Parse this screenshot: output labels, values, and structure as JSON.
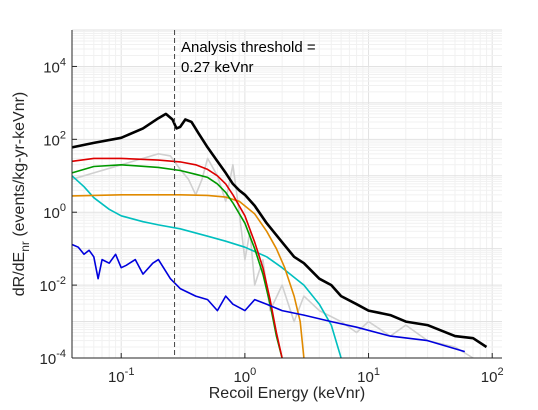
{
  "chart_data": {
    "type": "line",
    "xlabel": "Recoil Energy (keVnr)",
    "ylabel_prefix": "dR/dE",
    "ylabel_subscript": "nr",
    "ylabel_suffix": " (events/kg-yr-keVnr)",
    "x_scale": "log",
    "y_scale": "log",
    "xlim": [
      0.04,
      120
    ],
    "ylim": [
      0.0001,
      100000
    ],
    "x_ticks": [
      {
        "value": 0.1,
        "base": "10",
        "exp": "-1"
      },
      {
        "value": 1,
        "base": "10",
        "exp": "0"
      },
      {
        "value": 10,
        "base": "10",
        "exp": "1"
      },
      {
        "value": 100,
        "base": "10",
        "exp": "2"
      }
    ],
    "y_ticks": [
      {
        "value": 0.0001,
        "base": "10",
        "exp": "-4"
      },
      {
        "value": 0.01,
        "base": "10",
        "exp": "-2"
      },
      {
        "value": 1,
        "base": "10",
        "exp": "0"
      },
      {
        "value": 100,
        "base": "10",
        "exp": "2"
      },
      {
        "value": 10000,
        "base": "10",
        "exp": "4"
      }
    ],
    "grid": true,
    "threshold": {
      "x": 0.27,
      "label_line1": "Analysis threshold =",
      "label_line2": "0.27 keVnr"
    },
    "series": [
      {
        "color": "#d0d0d0",
        "points": [
          [
            0.04,
            8
          ],
          [
            0.06,
            12
          ],
          [
            0.1,
            20
          ],
          [
            0.15,
            30
          ],
          [
            0.2,
            40
          ],
          [
            0.25,
            35
          ],
          [
            0.3,
            15
          ],
          [
            0.35,
            8
          ],
          [
            0.4,
            3
          ],
          [
            0.45,
            8
          ],
          [
            0.5,
            30
          ],
          [
            0.6,
            10
          ],
          [
            0.7,
            2
          ],
          [
            0.8,
            20
          ],
          [
            0.9,
            1
          ],
          [
            1.0,
            0.05
          ],
          [
            1.1,
            0.3
          ],
          [
            1.2,
            0.01
          ],
          [
            1.4,
            0.05
          ],
          [
            1.6,
            0.002
          ],
          [
            2.0,
            0.01
          ],
          [
            2.5,
            0.001
          ],
          [
            3.0,
            0.005
          ],
          [
            4.0,
            0.002
          ],
          [
            6,
            0.001
          ],
          [
            8,
            0.0005
          ],
          [
            10,
            0.001
          ],
          [
            15,
            0.0004
          ],
          [
            20,
            0.0008
          ],
          [
            30,
            0.0003
          ],
          [
            50,
            0.0002
          ],
          [
            70,
            0.0001
          ]
        ]
      },
      {
        "color": "#00bfbf",
        "points": [
          [
            0.04,
            10
          ],
          [
            0.05,
            5
          ],
          [
            0.06,
            2.5
          ],
          [
            0.08,
            1.2
          ],
          [
            0.1,
            0.8
          ],
          [
            0.15,
            0.55
          ],
          [
            0.2,
            0.45
          ],
          [
            0.3,
            0.35
          ],
          [
            0.5,
            0.22
          ],
          [
            0.7,
            0.16
          ],
          [
            1,
            0.11
          ],
          [
            1.5,
            0.06
          ],
          [
            2,
            0.03
          ],
          [
            3,
            0.01
          ],
          [
            4,
            0.003
          ],
          [
            5,
            0.0008
          ],
          [
            6,
            0.0001
          ]
        ]
      },
      {
        "color": "#e08a00",
        "points": [
          [
            0.04,
            2.8
          ],
          [
            0.1,
            3.0
          ],
          [
            0.3,
            3.0
          ],
          [
            0.5,
            2.9
          ],
          [
            0.7,
            2.6
          ],
          [
            0.9,
            2.0
          ],
          [
            1.2,
            0.9
          ],
          [
            1.5,
            0.3
          ],
          [
            1.8,
            0.1
          ],
          [
            2.1,
            0.03
          ],
          [
            2.5,
            0.005
          ],
          [
            2.8,
            0.001
          ],
          [
            3.0,
            0.0001
          ]
        ]
      },
      {
        "color": "#009900",
        "points": [
          [
            0.04,
            12
          ],
          [
            0.06,
            18
          ],
          [
            0.1,
            20
          ],
          [
            0.2,
            17
          ],
          [
            0.3,
            14
          ],
          [
            0.4,
            11
          ],
          [
            0.5,
            9
          ],
          [
            0.6,
            6
          ],
          [
            0.7,
            3.5
          ],
          [
            0.8,
            1.8
          ],
          [
            1.0,
            0.5
          ],
          [
            1.2,
            0.1
          ],
          [
            1.4,
            0.02
          ],
          [
            1.6,
            0.003
          ],
          [
            1.8,
            0.0004
          ],
          [
            2.0,
            0.0001
          ]
        ]
      },
      {
        "color": "#dd0000",
        "points": [
          [
            0.04,
            25
          ],
          [
            0.06,
            30
          ],
          [
            0.1,
            30
          ],
          [
            0.2,
            27
          ],
          [
            0.3,
            24
          ],
          [
            0.4,
            20
          ],
          [
            0.5,
            15
          ],
          [
            0.6,
            10
          ],
          [
            0.7,
            6
          ],
          [
            0.8,
            3
          ],
          [
            1.0,
            0.8
          ],
          [
            1.2,
            0.15
          ],
          [
            1.4,
            0.03
          ],
          [
            1.6,
            0.004
          ],
          [
            1.8,
            0.0005
          ],
          [
            2.0,
            0.0001
          ]
        ]
      },
      {
        "color": "#0000dd",
        "points": [
          [
            0.04,
            0.13
          ],
          [
            0.045,
            0.11
          ],
          [
            0.05,
            0.07
          ],
          [
            0.055,
            0.09
          ],
          [
            0.06,
            0.06
          ],
          [
            0.065,
            0.015
          ],
          [
            0.07,
            0.05
          ],
          [
            0.08,
            0.04
          ],
          [
            0.09,
            0.07
          ],
          [
            0.1,
            0.03
          ],
          [
            0.11,
            0.035
          ],
          [
            0.13,
            0.05
          ],
          [
            0.15,
            0.02
          ],
          [
            0.18,
            0.04
          ],
          [
            0.2,
            0.05
          ],
          [
            0.25,
            0.015
          ],
          [
            0.3,
            0.008
          ],
          [
            0.4,
            0.005
          ],
          [
            0.5,
            0.004
          ],
          [
            0.6,
            0.002
          ],
          [
            0.7,
            0.005
          ],
          [
            0.8,
            0.003
          ],
          [
            1.0,
            0.002
          ],
          [
            1.2,
            0.004
          ],
          [
            1.5,
            0.003
          ],
          [
            2,
            0.002
          ],
          [
            3,
            0.0015
          ],
          [
            5,
            0.001
          ],
          [
            8,
            0.0007
          ],
          [
            15,
            0.0004
          ],
          [
            30,
            0.0003
          ],
          [
            60,
            0.00015
          ]
        ]
      },
      {
        "color": "#000000",
        "points": [
          [
            0.04,
            60
          ],
          [
            0.06,
            80
          ],
          [
            0.1,
            110
          ],
          [
            0.15,
            200
          ],
          [
            0.2,
            380
          ],
          [
            0.23,
            500
          ],
          [
            0.26,
            350
          ],
          [
            0.28,
            200
          ],
          [
            0.3,
            220
          ],
          [
            0.33,
            350
          ],
          [
            0.37,
            300
          ],
          [
            0.42,
            150
          ],
          [
            0.5,
            60
          ],
          [
            0.6,
            25
          ],
          [
            0.7,
            12
          ],
          [
            0.8,
            6
          ],
          [
            0.9,
            4
          ],
          [
            1.0,
            3
          ],
          [
            1.2,
            1.5
          ],
          [
            1.5,
            0.5
          ],
          [
            2,
            0.15
          ],
          [
            2.5,
            0.06
          ],
          [
            3,
            0.04
          ],
          [
            4,
            0.015
          ],
          [
            5,
            0.01
          ],
          [
            6,
            0.005
          ],
          [
            8,
            0.003
          ],
          [
            10,
            0.002
          ],
          [
            15,
            0.0015
          ],
          [
            20,
            0.001
          ],
          [
            30,
            0.0008
          ],
          [
            50,
            0.0004
          ],
          [
            70,
            0.00035
          ],
          [
            90,
            0.0002
          ]
        ]
      }
    ]
  }
}
